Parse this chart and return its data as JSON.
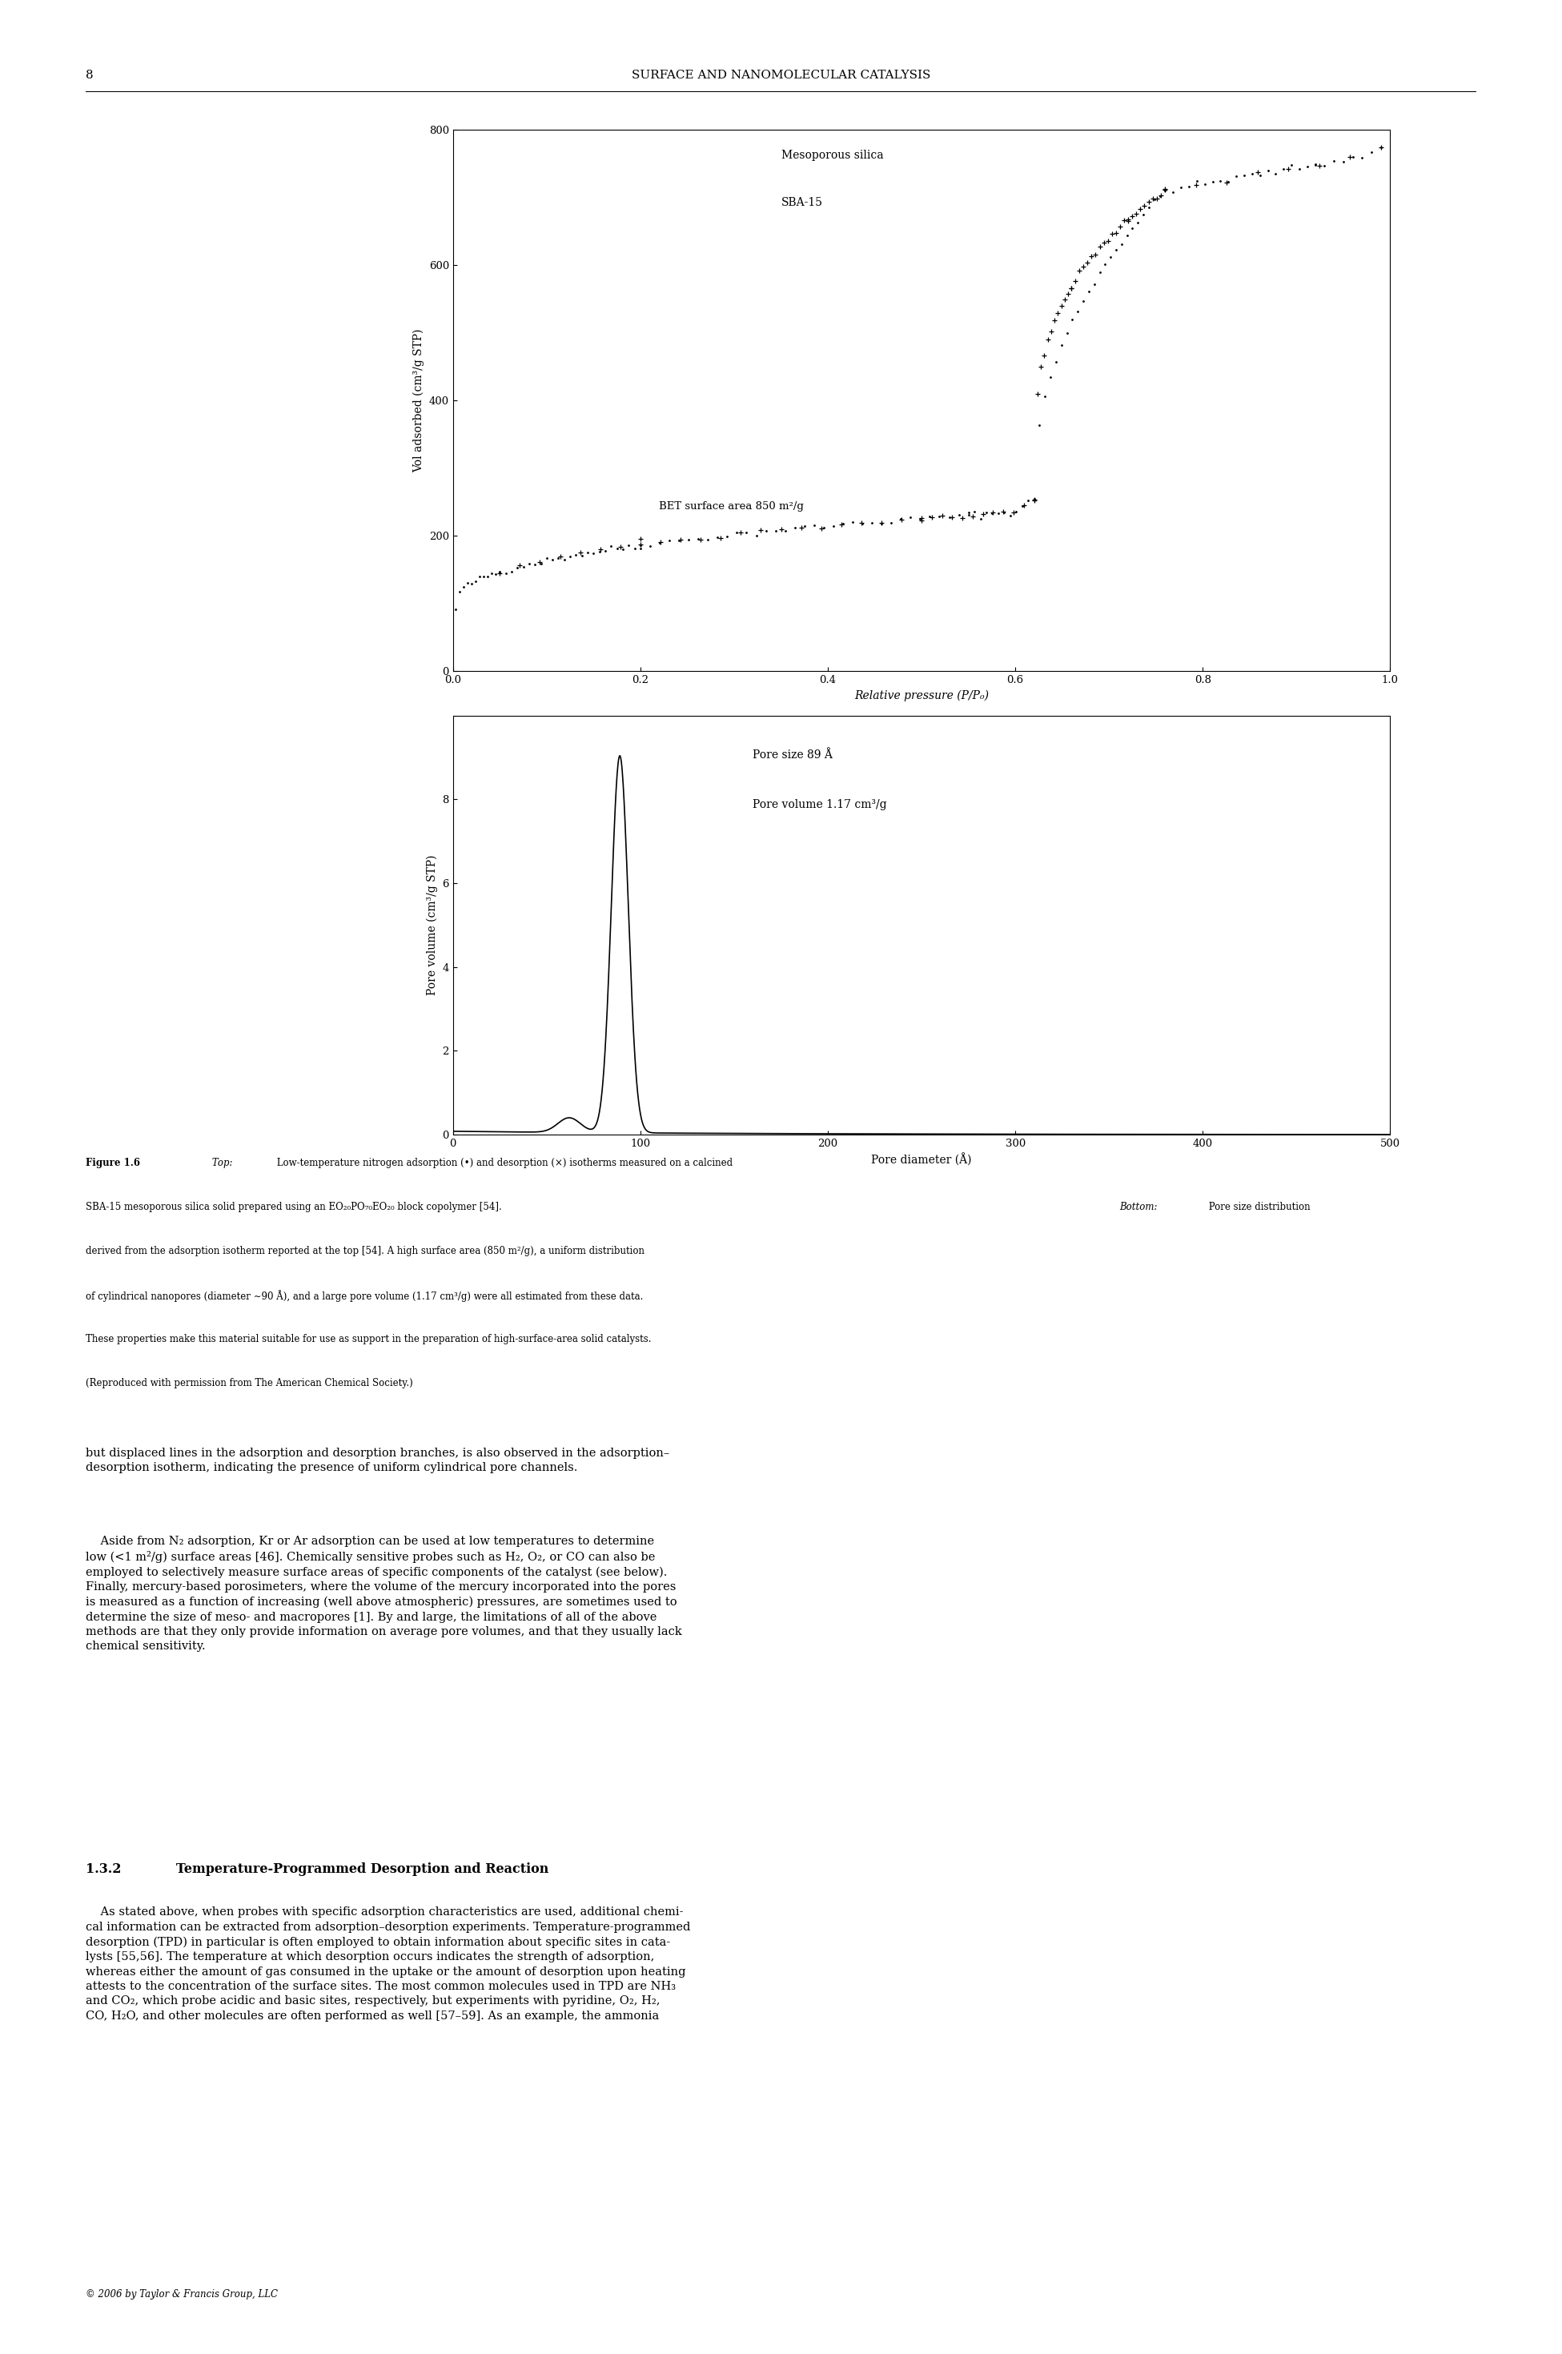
{
  "page_width": 19.51,
  "page_height": 29.4,
  "bg_color": "#ffffff",
  "page_number": "8",
  "header_text": "SURFACE AND NANOMOLECULAR CATALYSIS",
  "top_plot": {
    "ylabel": "Vol adsorbed (cm³/g STP)",
    "xlabel": "Relative pressure (P/P₀)",
    "ylim": [
      0,
      800
    ],
    "xlim": [
      0,
      1
    ],
    "yticks": [
      0,
      200,
      400,
      600,
      800
    ],
    "xticks": [
      0,
      0.2,
      0.4,
      0.6,
      0.8,
      1
    ],
    "annot_label1": "Mesoporous silica",
    "annot_label2": "SBA-15",
    "annot_label3": "BET surface area 850 m²/g"
  },
  "bottom_plot": {
    "ylabel": "Pore volume (cm³/g STP)",
    "xlabel": "Pore diameter (Å)",
    "ylim": [
      0,
      10
    ],
    "xlim": [
      0,
      500
    ],
    "yticks": [
      0,
      2,
      4,
      6,
      8
    ],
    "xticks": [
      0,
      100,
      200,
      300,
      400,
      500
    ],
    "annot_label1": "Pore size 89 Å",
    "annot_label2": "Pore volume 1.17 cm³/g"
  },
  "footer_text": "© 2006 by Taylor & Francis Group, LLC"
}
